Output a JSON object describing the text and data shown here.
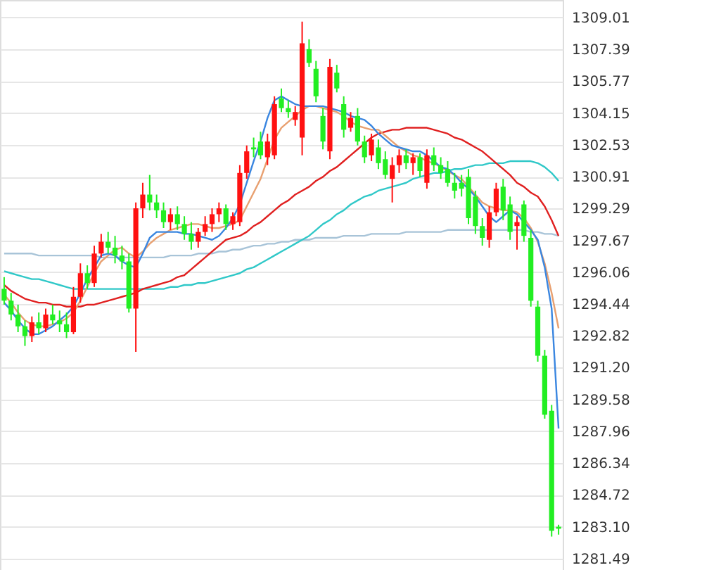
{
  "chart_data": {
    "type": "candlestick",
    "categories": [
      null,
      null,
      null,
      null,
      null,
      null,
      null,
      null,
      null,
      null,
      null,
      null,
      null,
      null,
      null,
      null,
      null,
      null,
      null,
      null,
      null,
      null,
      null,
      null,
      null,
      null,
      null,
      null,
      null,
      null,
      null,
      null,
      null,
      null,
      null,
      null,
      null,
      null,
      null,
      null,
      null,
      null,
      null,
      null,
      null,
      null,
      null,
      null,
      null,
      null,
      null,
      null,
      null,
      null,
      null,
      null,
      null,
      null,
      null,
      null,
      null,
      null,
      null,
      null,
      null,
      null,
      null,
      null,
      null,
      null,
      null,
      null,
      null,
      null,
      null,
      null,
      null,
      null,
      null,
      null,
      null
    ],
    "ohlc": [
      [
        1295.2,
        1295.8,
        1294.4,
        1294.6
      ],
      [
        1294.6,
        1295.0,
        1293.6,
        1293.9
      ],
      [
        1293.9,
        1294.4,
        1293.0,
        1293.3
      ],
      [
        1293.3,
        1293.6,
        1292.3,
        1292.8
      ],
      [
        1292.8,
        1293.8,
        1292.5,
        1293.5
      ],
      [
        1293.5,
        1294.0,
        1292.9,
        1293.2
      ],
      [
        1293.2,
        1294.2,
        1293.0,
        1293.9
      ],
      [
        1293.9,
        1294.4,
        1293.4,
        1293.6
      ],
      [
        1293.6,
        1294.1,
        1293.0,
        1293.4
      ],
      [
        1293.4,
        1294.0,
        1292.7,
        1293.0
      ],
      [
        1293.0,
        1295.3,
        1292.9,
        1294.8
      ],
      [
        1294.8,
        1296.5,
        1294.5,
        1296.0
      ],
      [
        1296.0,
        1296.4,
        1295.2,
        1295.5
      ],
      [
        1295.5,
        1297.4,
        1295.3,
        1297.0
      ],
      [
        1297.0,
        1298.0,
        1296.8,
        1297.6
      ],
      [
        1297.6,
        1298.1,
        1297.0,
        1297.3
      ],
      [
        1297.3,
        1297.9,
        1296.5,
        1296.9
      ],
      [
        1296.9,
        1297.4,
        1296.2,
        1296.6
      ],
      [
        1296.6,
        1297.0,
        1294.0,
        1294.2
      ],
      [
        1294.2,
        1299.6,
        1292.0,
        1299.3
      ],
      [
        1299.3,
        1300.6,
        1298.8,
        1300.0
      ],
      [
        1300.0,
        1301.0,
        1299.2,
        1299.6
      ],
      [
        1299.6,
        1300.0,
        1298.8,
        1299.2
      ],
      [
        1299.2,
        1299.6,
        1298.3,
        1298.6
      ],
      [
        1298.6,
        1299.3,
        1298.2,
        1299.0
      ],
      [
        1299.0,
        1299.4,
        1298.2,
        1298.5
      ],
      [
        1298.5,
        1298.9,
        1297.7,
        1298.0
      ],
      [
        1298.0,
        1298.6,
        1297.2,
        1297.6
      ],
      [
        1297.6,
        1298.3,
        1297.3,
        1298.1
      ],
      [
        1298.1,
        1298.9,
        1297.9,
        1298.5
      ],
      [
        1298.5,
        1299.3,
        1298.1,
        1299.0
      ],
      [
        1299.0,
        1299.6,
        1298.6,
        1299.3
      ],
      [
        1299.3,
        1299.5,
        1298.2,
        1298.5
      ],
      [
        1298.5,
        1299.1,
        1298.2,
        1298.9
      ],
      [
        1298.6,
        1301.5,
        1298.4,
        1301.1
      ],
      [
        1301.1,
        1302.5,
        1300.8,
        1302.2
      ],
      [
        1302.4,
        1302.9,
        1301.9,
        1302.3
      ],
      [
        1302.7,
        1303.2,
        1301.8,
        1302.0
      ],
      [
        1301.9,
        1303.1,
        1301.5,
        1302.7
      ],
      [
        1302.0,
        1305.0,
        1301.8,
        1304.6
      ],
      [
        1304.9,
        1305.4,
        1304.2,
        1304.4
      ],
      [
        1304.4,
        1304.8,
        1303.9,
        1304.2
      ],
      [
        1303.8,
        1304.5,
        1303.5,
        1304.2
      ],
      [
        1302.9,
        1308.8,
        1302.0,
        1307.7
      ],
      [
        1307.4,
        1307.9,
        1306.5,
        1306.7
      ],
      [
        1306.4,
        1306.8,
        1304.7,
        1305.0
      ],
      [
        1304.0,
        1304.4,
        1302.3,
        1302.7
      ],
      [
        1302.2,
        1306.9,
        1301.8,
        1306.5
      ],
      [
        1306.2,
        1306.6,
        1305.2,
        1305.4
      ],
      [
        1304.6,
        1305.0,
        1302.9,
        1303.3
      ],
      [
        1303.4,
        1304.2,
        1303.2,
        1303.9
      ],
      [
        1304.0,
        1304.4,
        1302.5,
        1302.7
      ],
      [
        1302.7,
        1303.0,
        1301.6,
        1301.9
      ],
      [
        1302.0,
        1303.1,
        1301.7,
        1302.8
      ],
      [
        1302.4,
        1302.8,
        1301.3,
        1301.6
      ],
      [
        1301.8,
        1302.2,
        1300.8,
        1301.0
      ],
      [
        1300.8,
        1301.9,
        1299.6,
        1301.5
      ],
      [
        1301.5,
        1302.3,
        1301.1,
        1302.0
      ],
      [
        1302.0,
        1302.3,
        1301.3,
        1301.6
      ],
      [
        1301.6,
        1302.1,
        1301.0,
        1301.9
      ],
      [
        1301.9,
        1302.1,
        1300.9,
        1301.2
      ],
      [
        1300.6,
        1302.3,
        1300.3,
        1302.0
      ],
      [
        1302.0,
        1302.4,
        1301.2,
        1301.5
      ],
      [
        1301.5,
        1301.9,
        1300.8,
        1301.1
      ],
      [
        1301.3,
        1301.7,
        1300.4,
        1300.6
      ],
      [
        1300.6,
        1301.1,
        1299.8,
        1300.2
      ],
      [
        1300.6,
        1301.0,
        1299.9,
        1300.3
      ],
      [
        1300.9,
        1301.3,
        1298.5,
        1298.8
      ],
      [
        1299.9,
        1300.2,
        1298.0,
        1298.4
      ],
      [
        1298.4,
        1298.8,
        1297.4,
        1297.8
      ],
      [
        1297.7,
        1299.4,
        1297.3,
        1299.1
      ],
      [
        1299.1,
        1300.6,
        1298.9,
        1300.3
      ],
      [
        1300.4,
        1300.8,
        1298.7,
        1299.2
      ],
      [
        1299.5,
        1299.9,
        1297.7,
        1298.1
      ],
      [
        1298.4,
        1298.9,
        1297.2,
        1298.6
      ],
      [
        1299.5,
        1299.7,
        1297.6,
        1297.9
      ],
      [
        1297.8,
        1298.2,
        1294.3,
        1294.6
      ],
      [
        1294.3,
        1294.6,
        1291.5,
        1291.8
      ],
      [
        1291.8,
        1292.1,
        1288.6,
        1288.8
      ],
      [
        1289.0,
        1289.3,
        1282.6,
        1282.9
      ],
      [
        1283.1,
        1283.2,
        1282.7,
        1283.0
      ]
    ],
    "colors": [
      "#22ee22",
      "#22ee22",
      "#22ee22",
      "#22ee22",
      "#ff1111",
      "#22ee22",
      "#ff1111",
      "#22ee22",
      "#22ee22",
      "#22ee22",
      "#ff1111",
      "#ff1111",
      "#22ee22",
      "#ff1111",
      "#ff1111",
      "#22ee22",
      "#22ee22",
      "#22ee22",
      "#22ee22",
      "#ff1111",
      "#ff1111",
      "#22ee22",
      "#22ee22",
      "#22ee22",
      "#ff1111",
      "#22ee22",
      "#22ee22",
      "#22ee22",
      "#ff1111",
      "#ff1111",
      "#ff1111",
      "#ff1111",
      "#22ee22",
      "#ff1111",
      "#ff1111",
      "#ff1111",
      "#22ee22",
      "#22ee22",
      "#ff1111",
      "#ff1111",
      "#22ee22",
      "#22ee22",
      "#ff1111",
      "#ff1111",
      "#22ee22",
      "#22ee22",
      "#22ee22",
      "#ff1111",
      "#22ee22",
      "#22ee22",
      "#ff1111",
      "#22ee22",
      "#22ee22",
      "#ff1111",
      "#22ee22",
      "#22ee22",
      "#ff1111",
      "#ff1111",
      "#22ee22",
      "#ff1111",
      "#22ee22",
      "#ff1111",
      "#22ee22",
      "#22ee22",
      "#22ee22",
      "#22ee22",
      "#22ee22",
      "#22ee22",
      "#22ee22",
      "#22ee22",
      "#ff1111",
      "#ff1111",
      "#22ee22",
      "#22ee22",
      "#ff1111",
      "#22ee22",
      "#22ee22",
      "#22ee22",
      "#22ee22",
      "#22ee22",
      "#22ee22"
    ],
    "series": [
      {
        "type": "line",
        "color": "#a8c4d8",
        "values": [
          1297.0,
          1297.0,
          1297.0,
          1297.0,
          1297.0,
          1296.9,
          1296.9,
          1296.9,
          1296.9,
          1296.9,
          1296.9,
          1296.9,
          1296.9,
          1296.9,
          1296.8,
          1296.8,
          1296.8,
          1296.8,
          1296.8,
          1296.8,
          1296.8,
          1296.8,
          1296.8,
          1296.8,
          1296.9,
          1296.9,
          1296.9,
          1296.9,
          1297.0,
          1297.0,
          1297.0,
          1297.1,
          1297.1,
          1297.2,
          1297.2,
          1297.3,
          1297.4,
          1297.4,
          1297.5,
          1297.5,
          1297.6,
          1297.6,
          1297.7,
          1297.7,
          1297.7,
          1297.8,
          1297.8,
          1297.8,
          1297.8,
          1297.9,
          1297.9,
          1297.9,
          1297.9,
          1298.0,
          1298.0,
          1298.0,
          1298.0,
          1298.0,
          1298.1,
          1298.1,
          1298.1,
          1298.1,
          1298.1,
          1298.1,
          1298.2,
          1298.2,
          1298.2,
          1298.2,
          1298.2,
          1298.2,
          1298.2,
          1298.2,
          1298.2,
          1298.2,
          1298.2,
          1298.2,
          1298.1,
          1298.1,
          1298.0,
          1298.0,
          1297.9
        ]
      },
      {
        "type": "line",
        "color": "#30c8c8",
        "values": [
          1296.1,
          1296.0,
          1295.9,
          1295.8,
          1295.7,
          1295.7,
          1295.6,
          1295.5,
          1295.4,
          1295.3,
          1295.2,
          1295.2,
          1295.2,
          1295.2,
          1295.2,
          1295.2,
          1295.2,
          1295.2,
          1295.2,
          1295.2,
          1295.2,
          1295.2,
          1295.2,
          1295.2,
          1295.3,
          1295.3,
          1295.4,
          1295.4,
          1295.5,
          1295.5,
          1295.6,
          1295.7,
          1295.8,
          1295.9,
          1296.0,
          1296.2,
          1296.3,
          1296.5,
          1296.7,
          1296.9,
          1297.1,
          1297.3,
          1297.5,
          1297.7,
          1297.9,
          1298.2,
          1298.5,
          1298.7,
          1299.0,
          1299.2,
          1299.5,
          1299.7,
          1299.9,
          1300.0,
          1300.2,
          1300.3,
          1300.4,
          1300.5,
          1300.6,
          1300.8,
          1300.9,
          1301.0,
          1301.1,
          1301.1,
          1301.2,
          1301.3,
          1301.3,
          1301.4,
          1301.5,
          1301.5,
          1301.6,
          1301.6,
          1301.6,
          1301.7,
          1301.7,
          1301.7,
          1301.7,
          1301.6,
          1301.4,
          1301.1,
          1300.7
        ]
      },
      {
        "type": "line",
        "color": "#e02020",
        "values": [
          1295.4,
          1295.1,
          1294.9,
          1294.7,
          1294.6,
          1294.5,
          1294.5,
          1294.4,
          1294.4,
          1294.3,
          1294.3,
          1294.3,
          1294.4,
          1294.4,
          1294.5,
          1294.6,
          1294.7,
          1294.8,
          1294.9,
          1295.0,
          1295.2,
          1295.3,
          1295.4,
          1295.5,
          1295.6,
          1295.8,
          1295.9,
          1296.2,
          1296.5,
          1296.8,
          1297.1,
          1297.4,
          1297.7,
          1297.8,
          1297.9,
          1298.1,
          1298.4,
          1298.6,
          1298.9,
          1299.2,
          1299.5,
          1299.7,
          1300.0,
          1300.2,
          1300.4,
          1300.7,
          1300.9,
          1301.2,
          1301.4,
          1301.7,
          1302.0,
          1302.3,
          1302.6,
          1302.9,
          1303.1,
          1303.2,
          1303.3,
          1303.3,
          1303.4,
          1303.4,
          1303.4,
          1303.4,
          1303.3,
          1303.2,
          1303.1,
          1302.9,
          1302.8,
          1302.6,
          1302.4,
          1302.2,
          1301.9,
          1301.6,
          1301.3,
          1301.0,
          1300.6,
          1300.4,
          1300.1,
          1299.9,
          1299.4,
          1298.7,
          1297.9
        ]
      },
      {
        "type": "line",
        "color": "#e8a070",
        "values": [
          1294.9,
          1294.5,
          1294.0,
          1293.6,
          1293.4,
          1293.3,
          1293.3,
          1293.4,
          1293.5,
          1293.7,
          1294.0,
          1294.6,
          1295.3,
          1296.0,
          1296.6,
          1296.9,
          1297.2,
          1297.3,
          1297.0,
          1296.8,
          1297.1,
          1297.5,
          1297.8,
          1298.0,
          1298.2,
          1298.3,
          1298.4,
          1298.5,
          1298.5,
          1298.4,
          1298.3,
          1298.3,
          1298.4,
          1298.5,
          1298.7,
          1299.4,
          1300.1,
          1300.8,
          1301.8,
          1302.8,
          1303.4,
          1303.7,
          1304.0,
          1304.3,
          1304.5,
          1304.5,
          1304.4,
          1304.3,
          1304.2,
          1304.0,
          1303.7,
          1303.5,
          1303.4,
          1303.3,
          1303.3,
          1303.0,
          1302.7,
          1302.4,
          1302.2,
          1302.0,
          1301.9,
          1301.7,
          1301.6,
          1301.4,
          1301.2,
          1301.0,
          1300.8,
          1300.4,
          1300.0,
          1299.6,
          1299.4,
          1299.3,
          1299.2,
          1299.2,
          1299.1,
          1298.8,
          1298.3,
          1297.6,
          1296.5,
          1295.0,
          1293.2
        ]
      },
      {
        "type": "line",
        "color": "#3a86e0",
        "values": [
          1294.5,
          1294.1,
          1293.6,
          1293.2,
          1292.9,
          1292.9,
          1293.1,
          1293.3,
          1293.6,
          1293.9,
          1294.3,
          1295.0,
          1295.7,
          1296.3,
          1296.9,
          1297.0,
          1296.9,
          1296.6,
          1296.4,
          1296.3,
          1297.0,
          1297.8,
          1298.1,
          1298.1,
          1298.1,
          1298.1,
          1298.0,
          1298.0,
          1297.9,
          1297.8,
          1297.7,
          1297.9,
          1298.3,
          1298.8,
          1299.5,
          1300.6,
          1301.7,
          1302.7,
          1303.9,
          1304.8,
          1305.0,
          1304.8,
          1304.6,
          1304.5,
          1304.5,
          1304.5,
          1304.5,
          1304.4,
          1304.3,
          1304.2,
          1304.0,
          1303.9,
          1303.8,
          1303.5,
          1303.1,
          1302.8,
          1302.5,
          1302.4,
          1302.3,
          1302.2,
          1302.2,
          1302.0,
          1301.7,
          1301.4,
          1301.3,
          1301.0,
          1300.6,
          1300.3,
          1299.9,
          1299.4,
          1298.9,
          1298.6,
          1298.9,
          1299.2,
          1299.0,
          1298.6,
          1298.2,
          1297.7,
          1296.3,
          1294.2,
          1288.1
        ]
      }
    ],
    "ylim": [
      1280.9,
      1309.9
    ],
    "yticks": [
      1281.49,
      {
        "value": 1283.1,
        "label": "1283.10"
      },
      1284.72,
      1286.34,
      1287.96,
      1289.58,
      {
        "value": 1291.2,
        "label": "1291.20"
      },
      1292.82,
      1294.44,
      1296.06,
      1297.67,
      1299.29,
      1300.91,
      1302.53,
      1304.15,
      1305.77,
      1307.39,
      1309.01
    ],
    "grid": "y"
  }
}
